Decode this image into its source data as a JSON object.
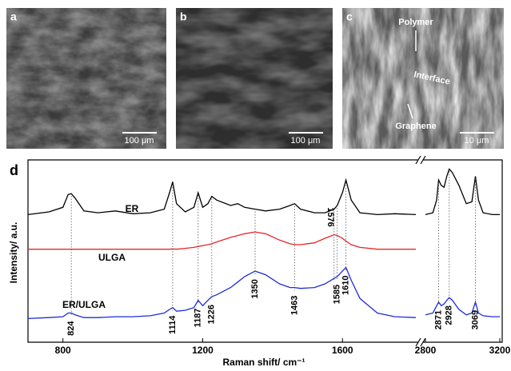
{
  "panels": [
    {
      "label": "a",
      "scale_bar": "100 μm"
    },
    {
      "label": "b",
      "scale_bar": "100 μm"
    },
    {
      "label": "c",
      "scale_bar": "10 μm",
      "annotations": [
        "Polymer",
        "Interface",
        "Graphene"
      ]
    }
  ],
  "chart_data": {
    "type": "line",
    "panel_label": "d",
    "xlabel": "Raman shift/ cm⁻¹",
    "ylabel": "Intensity/ a.u.",
    "x": [
      700,
      760,
      800,
      815,
      824,
      835,
      860,
      900,
      950,
      1000,
      1050,
      1090,
      1105,
      1114,
      1125,
      1150,
      1175,
      1187,
      1200,
      1215,
      1226,
      1240,
      1280,
      1300,
      1320,
      1350,
      1380,
      1420,
      1450,
      1463,
      1480,
      1520,
      1550,
      1576,
      1585,
      1600,
      1610,
      1625,
      1650,
      1700,
      1750,
      1810,
      2800,
      2840,
      2860,
      2871,
      2885,
      2900,
      2915,
      2928,
      2945,
      2980,
      3020,
      3050,
      3069,
      3085,
      3110,
      3160,
      3200
    ],
    "xlim": [
      [
        700,
        1810
      ],
      [
        2800,
        3200
      ]
    ],
    "xticks": [
      800,
      1200,
      1600,
      2800,
      3200
    ],
    "ylim": [
      0,
      10
    ],
    "series": [
      {
        "name": "ER",
        "color": "#000000",
        "values": [
          7.0,
          7.15,
          7.4,
          8.1,
          8.15,
          7.9,
          7.2,
          7.1,
          7.2,
          7.05,
          7.1,
          7.3,
          8.2,
          8.8,
          7.6,
          7.15,
          7.4,
          8.2,
          7.4,
          7.6,
          8.0,
          7.8,
          7.5,
          7.6,
          7.4,
          7.3,
          7.2,
          7.3,
          7.5,
          7.6,
          7.3,
          7.1,
          7.1,
          7.3,
          7.5,
          8.2,
          8.9,
          7.8,
          7.1,
          7.0,
          7.05,
          7.0,
          7.0,
          7.1,
          7.8,
          8.9,
          8.6,
          8.5,
          9.1,
          9.5,
          9.3,
          8.6,
          7.6,
          7.7,
          9.1,
          7.8,
          7.1,
          7.0,
          7.0
        ]
      },
      {
        "name": "ULGA",
        "color": "#e8252a",
        "values": [
          5.1,
          5.1,
          5.1,
          5.1,
          5.1,
          5.1,
          5.1,
          5.1,
          5.1,
          5.1,
          5.1,
          5.1,
          5.1,
          5.12,
          5.1,
          5.15,
          5.2,
          5.25,
          5.3,
          5.35,
          5.4,
          5.5,
          5.75,
          5.85,
          5.95,
          6.05,
          5.95,
          5.6,
          5.4,
          5.35,
          5.35,
          5.45,
          5.7,
          5.9,
          5.85,
          5.7,
          5.55,
          5.35,
          5.2,
          5.1,
          5.1,
          5.1,
          null,
          null,
          null,
          null,
          null,
          null,
          null,
          null,
          null,
          null,
          null,
          null,
          null,
          null,
          null,
          null,
          null
        ]
      },
      {
        "name": "ER/ULGA",
        "color": "#1f2bd6",
        "values": [
          1.3,
          1.35,
          1.4,
          1.6,
          1.6,
          1.5,
          1.35,
          1.35,
          1.4,
          1.4,
          1.45,
          1.6,
          1.8,
          1.9,
          1.7,
          1.75,
          1.9,
          2.3,
          2.0,
          2.3,
          2.5,
          2.6,
          3.0,
          3.3,
          3.6,
          3.9,
          3.7,
          3.2,
          3.0,
          3.0,
          2.95,
          3.0,
          3.2,
          3.5,
          3.6,
          3.9,
          4.1,
          3.4,
          2.4,
          1.6,
          1.4,
          1.35,
          1.5,
          1.6,
          2.0,
          2.2,
          2.0,
          2.1,
          2.3,
          2.45,
          2.3,
          1.8,
          1.5,
          1.6,
          2.2,
          1.6,
          1.45,
          1.4,
          1.4
        ]
      }
    ],
    "peaks": [
      824,
      1114,
      1187,
      1226,
      1350,
      1463,
      1576,
      1585,
      1610,
      2871,
      2928,
      3069
    ]
  }
}
